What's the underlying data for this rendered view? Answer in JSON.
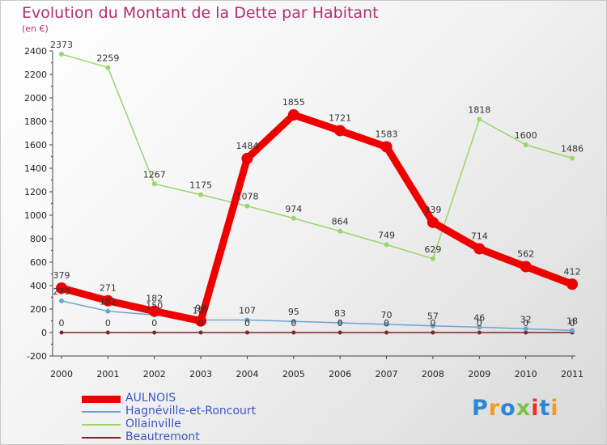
{
  "header": {
    "title": "Evolution du Montant de la Dette par Habitant",
    "unit": "(en €)"
  },
  "logo": {
    "text": "Proxiti",
    "letters": [
      "P",
      "r",
      "o",
      "x",
      "i",
      "t",
      "i"
    ],
    "colors": [
      "#2c86d4",
      "#f29b1d",
      "#2c86d4",
      "#7cc242",
      "#e8322b",
      "#2c86d4",
      "#f29b1d"
    ]
  },
  "chart_data": {
    "type": "line",
    "title": "Evolution du Montant de la Dette par Habitant",
    "ylabel": "(en €)",
    "xlabel": "",
    "x": [
      "2000",
      "2001",
      "2002",
      "2003",
      "2004",
      "2005",
      "2006",
      "2007",
      "2008",
      "2009",
      "2010",
      "2011"
    ],
    "ylim": [
      -200,
      2400
    ],
    "yticks": [
      -200,
      0,
      200,
      400,
      600,
      800,
      1000,
      1200,
      1400,
      1600,
      1800,
      2000,
      2200,
      2400
    ],
    "grid": false,
    "legend": "bottom-left",
    "series": [
      {
        "name": "AULNOIS",
        "color": "#ee0000",
        "values": [
          379,
          271,
          182,
          99,
          1484,
          1855,
          1721,
          1583,
          939,
          714,
          562,
          412
        ]
      },
      {
        "name": "Hagnéville-et-Roncourt",
        "color": "#6fa3cf",
        "values": [
          270,
          182,
          150,
          107,
          107,
          95,
          83,
          70,
          57,
          46,
          32,
          18
        ]
      },
      {
        "name": "Ollainville",
        "color": "#9ad66a",
        "values": [
          2373,
          2259,
          1267,
          1175,
          1078,
          974,
          864,
          749,
          629,
          1818,
          1600,
          1486
        ]
      },
      {
        "name": "Beautremont",
        "color": "#7a2626",
        "values": [
          0,
          0,
          0,
          0,
          0,
          0,
          0,
          0,
          0,
          0,
          0,
          0
        ]
      }
    ]
  }
}
